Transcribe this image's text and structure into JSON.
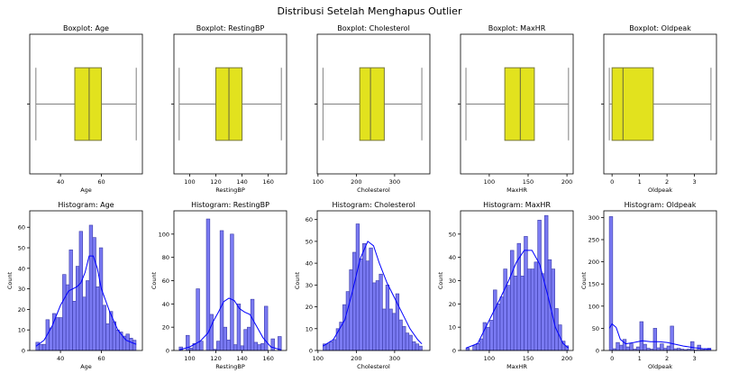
{
  "suptitle": "Distribusi Setelah Menghapus Outlier",
  "colors": {
    "box_fill": "#e2e21e",
    "box_edge": "#7a7a3a",
    "whisker": "#808080",
    "hist_fill": "#7a7af2",
    "hist_edge": "#3a3aa8",
    "kde": "#0000ff"
  },
  "chart_data": [
    {
      "type": "boxplot",
      "title": "Boxplot: Age",
      "xlabel": "Age",
      "xlim": [
        25,
        80
      ],
      "xticks": [
        40,
        60
      ],
      "whisker_low": 28,
      "q1": 47,
      "median": 54,
      "q3": 60,
      "whisker_high": 77
    },
    {
      "type": "boxplot",
      "title": "Boxplot: RestingBP",
      "xlabel": "RestingBP",
      "xlim": [
        88,
        174
      ],
      "xticks": [
        100,
        120,
        140,
        160
      ],
      "whisker_low": 92,
      "q1": 120,
      "median": 130,
      "q3": 140,
      "whisker_high": 170
    },
    {
      "type": "boxplot",
      "title": "Boxplot: Cholesterol",
      "xlabel": "Cholesterol",
      "xlim": [
        98,
        392
      ],
      "xticks": [
        100,
        200,
        300
      ],
      "whisker_low": 113,
      "q1": 209,
      "median": 237,
      "q3": 273,
      "whisker_high": 371
    },
    {
      "type": "boxplot",
      "title": "Boxplot: MaxHR",
      "xlabel": "MaxHR",
      "xlim": [
        63,
        208
      ],
      "xticks": [
        100,
        150,
        200
      ],
      "whisker_low": 70,
      "q1": 120,
      "median": 140,
      "q3": 158,
      "whisker_high": 202
    },
    {
      "type": "boxplot",
      "title": "Boxplot: Oldpeak",
      "xlabel": "Oldpeak",
      "xlim": [
        -0.3,
        3.8
      ],
      "xticks": [
        0,
        1,
        2,
        3
      ],
      "whisker_low": -0.1,
      "q1": 0.0,
      "median": 0.4,
      "q3": 1.5,
      "whisker_high": 3.6
    },
    {
      "type": "histogram",
      "title": "Histogram: Age",
      "xlabel": "Age",
      "ylabel": "Count",
      "xlim": [
        25,
        80
      ],
      "ylim": [
        0,
        68
      ],
      "xticks": [
        40,
        60
      ],
      "yticks": [
        0,
        10,
        20,
        30,
        40,
        50,
        60
      ],
      "bin_start": 28,
      "bin_width": 1.63,
      "counts": [
        4,
        3,
        3,
        15,
        11,
        18,
        16,
        16,
        37,
        32,
        49,
        24,
        41,
        58,
        26,
        34,
        61,
        55,
        31,
        50,
        22,
        13,
        19,
        14,
        10,
        9,
        7,
        8,
        6,
        5
      ],
      "kde_x": [
        28,
        32,
        36,
        40,
        44,
        48,
        50,
        52,
        54,
        56,
        58,
        60,
        64,
        68,
        72,
        77
      ],
      "kde_y": [
        2,
        5,
        12,
        22,
        29,
        31,
        33,
        38,
        46,
        46,
        40,
        30,
        19,
        10,
        5,
        3
      ]
    },
    {
      "type": "histogram",
      "title": "Histogram: RestingBP",
      "xlabel": "RestingBP",
      "ylabel": "Count",
      "xlim": [
        88,
        174
      ],
      "ylim": [
        0,
        120
      ],
      "xticks": [
        100,
        120,
        140,
        160
      ],
      "yticks": [
        0,
        20,
        40,
        60,
        80,
        100
      ],
      "bin_start": 92,
      "bin_width": 2.6,
      "counts": [
        3,
        0,
        13,
        2,
        6,
        53,
        8,
        0,
        113,
        31,
        1,
        8,
        103,
        20,
        9,
        100,
        5,
        40,
        4,
        18,
        20,
        44,
        7,
        5,
        6,
        38,
        0,
        10,
        0,
        12
      ],
      "kde_x": [
        92,
        100,
        108,
        114,
        118,
        122,
        126,
        130,
        134,
        138,
        142,
        146,
        150,
        156,
        162,
        170
      ],
      "kde_y": [
        0.5,
        3,
        8,
        15,
        25,
        33,
        42,
        45,
        43,
        36,
        33,
        31,
        23,
        11,
        3,
        0.5
      ]
    },
    {
      "type": "histogram",
      "title": "Histogram: Cholesterol",
      "xlabel": "Cholesterol",
      "ylabel": "Count",
      "xlim": [
        98,
        392
      ],
      "ylim": [
        0,
        64
      ],
      "xticks": [
        100,
        200,
        300
      ],
      "yticks": [
        0,
        10,
        20,
        30,
        40,
        50,
        60
      ],
      "bin_start": 113,
      "bin_width": 8.63,
      "counts": [
        3,
        3,
        4,
        5,
        10,
        13,
        21,
        27,
        37,
        45,
        58,
        42,
        49,
        41,
        47,
        31,
        32,
        35,
        19,
        30,
        19,
        17,
        26,
        14,
        11,
        8,
        7,
        4,
        3,
        2
      ],
      "kde_x": [
        113,
        140,
        170,
        190,
        210,
        230,
        245,
        260,
        280,
        300,
        320,
        340,
        360,
        371
      ],
      "kde_y": [
        2,
        5,
        14,
        27,
        42,
        50,
        48,
        40,
        31,
        24,
        17,
        10,
        5,
        3
      ]
    },
    {
      "type": "histogram",
      "title": "Histogram: MaxHR",
      "xlabel": "MaxHR",
      "ylabel": "Count",
      "xlim": [
        63,
        208
      ],
      "ylim": [
        0,
        60
      ],
      "xticks": [
        100,
        150,
        200
      ],
      "yticks": [
        0,
        10,
        20,
        30,
        40,
        50
      ],
      "bin_start": 70,
      "bin_width": 4.4,
      "counts": [
        1,
        0,
        2,
        3,
        5,
        12,
        10,
        13,
        26,
        20,
        23,
        35,
        28,
        43,
        32,
        46,
        32,
        49,
        35,
        35,
        38,
        56,
        33,
        58,
        39,
        35,
        18,
        11,
        4,
        2
      ],
      "kde_x": [
        70,
        85,
        100,
        115,
        125,
        135,
        145,
        155,
        165,
        175,
        185,
        195,
        202
      ],
      "kde_y": [
        1,
        3,
        13,
        23,
        30,
        38,
        43,
        43,
        37,
        24,
        10,
        3,
        1
      ]
    },
    {
      "type": "histogram",
      "title": "Histogram: Oldpeak",
      "xlabel": "Oldpeak",
      "ylabel": "Count",
      "xlim": [
        -0.3,
        3.8
      ],
      "ylim": [
        0,
        315
      ],
      "xticks": [
        0,
        1,
        2,
        3
      ],
      "yticks": [
        0,
        50,
        100,
        150,
        200,
        250,
        300
      ],
      "bin_start": -0.1,
      "bin_width": 0.1233,
      "counts": [
        302,
        4,
        18,
        12,
        25,
        8,
        15,
        3,
        8,
        65,
        14,
        5,
        3,
        50,
        6,
        15,
        5,
        10,
        55,
        4,
        5,
        3,
        2,
        3,
        20,
        1,
        12,
        2,
        4,
        5
      ],
      "kde_x": [
        -0.1,
        0.0,
        0.15,
        0.3,
        0.5,
        0.8,
        1.1,
        1.4,
        1.7,
        2.0,
        2.3,
        2.6,
        3.0,
        3.3,
        3.6
      ],
      "kde_y": [
        50,
        60,
        52,
        25,
        15,
        18,
        22,
        20,
        20,
        18,
        14,
        10,
        6,
        4,
        3
      ]
    }
  ]
}
